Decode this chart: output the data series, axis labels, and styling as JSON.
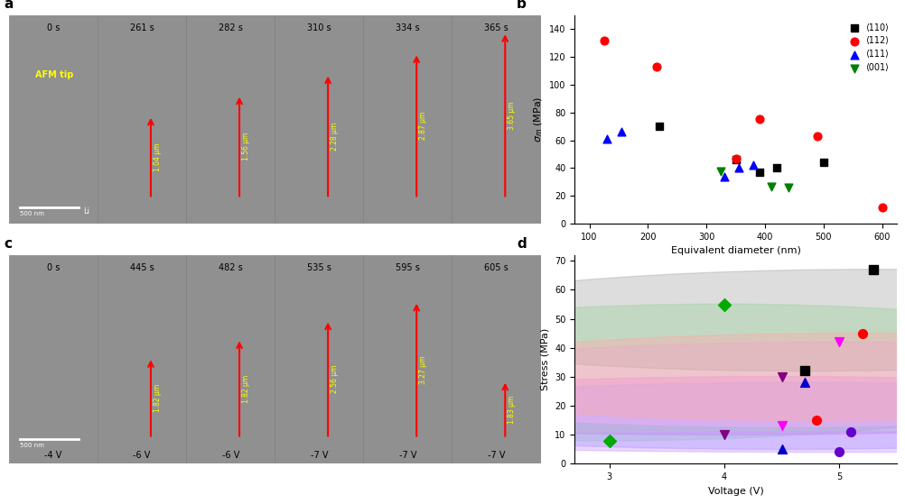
{
  "panel_b": {
    "title": "b",
    "xlabel": "Equivalent diameter (nm)",
    "ylabel": "σ_m (MPa)",
    "xlim": [
      75,
      625
    ],
    "ylim": [
      0,
      150
    ],
    "xticks": [
      100,
      200,
      300,
      400,
      500,
      600
    ],
    "yticks": [
      0,
      20,
      40,
      60,
      80,
      100,
      120,
      140
    ],
    "series": {
      "110": {
        "color": "black",
        "marker": "s",
        "label": "⟨110⟩",
        "x": [
          220,
          350,
          390,
          420,
          500
        ],
        "y": [
          70,
          46,
          37,
          40,
          44
        ]
      },
      "112": {
        "color": "red",
        "marker": "o",
        "label": "⟨112⟩",
        "x": [
          125,
          215,
          350,
          390,
          490,
          600
        ],
        "y": [
          132,
          113,
          47,
          75,
          63,
          12
        ]
      },
      "111": {
        "color": "blue",
        "marker": "^",
        "label": "⟨111⟩",
        "x": [
          130,
          155,
          330,
          355,
          380
        ],
        "y": [
          61,
          66,
          34,
          40,
          42
        ]
      },
      "001": {
        "color": "green",
        "marker": "v",
        "label": "⟨001⟩",
        "x": [
          325,
          410,
          440
        ],
        "y": [
          38,
          27,
          26
        ]
      }
    }
  },
  "panel_d": {
    "title": "d",
    "xlabel": "Voltage (V)",
    "ylabel": "Stress (MPa)",
    "xlim": [
      2.7,
      5.5
    ],
    "ylim": [
      0,
      72
    ],
    "xticks": [
      3,
      4,
      5
    ],
    "yticks": [
      0,
      10,
      20,
      30,
      40,
      50,
      60,
      70
    ],
    "series": [
      {
        "color": "#00aa00",
        "marker": "D",
        "x": [
          3.0,
          4.0
        ],
        "y": [
          8,
          55
        ],
        "ellipse_color": "#90ee90",
        "ellipse_alpha": 0.4
      },
      {
        "color": "#800080",
        "marker": "v",
        "x": [
          4.0,
          4.5
        ],
        "y": [
          10,
          30
        ],
        "ellipse_color": "#da70d6",
        "ellipse_alpha": 0.4
      },
      {
        "color": "#0000cc",
        "marker": "^",
        "x": [
          4.5,
          4.7
        ],
        "y": [
          5,
          28
        ],
        "ellipse_color": "#9999ff",
        "ellipse_alpha": 0.4
      },
      {
        "color": "#ff00ff",
        "marker": "v",
        "x": [
          4.5,
          5.0
        ],
        "y": [
          13,
          42
        ],
        "ellipse_color": "#ffaaff",
        "ellipse_alpha": 0.4
      },
      {
        "color": "black",
        "marker": "s",
        "x": [
          4.7,
          5.3
        ],
        "y": [
          32,
          67
        ],
        "ellipse_color": "#aaaaaa",
        "ellipse_alpha": 0.4
      },
      {
        "color": "red",
        "marker": "o",
        "x": [
          4.8,
          5.2
        ],
        "y": [
          15,
          45
        ],
        "ellipse_color": "#ffaaaa",
        "ellipse_alpha": 0.4
      },
      {
        "color": "#6600cc",
        "marker": "o",
        "x": [
          5.0,
          5.1
        ],
        "y": [
          4,
          11
        ],
        "ellipse_color": "#cc99ff",
        "ellipse_alpha": 0.4
      }
    ]
  },
  "microscopy_a": {
    "label": "a",
    "times": [
      "0 s",
      "261 s",
      "282 s",
      "310 s",
      "334 s",
      "365 s"
    ],
    "heights": [
      "",
      "1.04 μm",
      "1.56 μm",
      "2.28 μm",
      "2.87 μm",
      "3.65 μm"
    ]
  },
  "microscopy_c": {
    "label": "c",
    "times": [
      "0 s",
      "445 s",
      "482 s",
      "535 s",
      "595 s",
      "605 s"
    ],
    "voltages": [
      "-4 V",
      "-6 V",
      "-6 V",
      "-7 V",
      "-7 V",
      "-7 V"
    ],
    "heights": [
      "",
      "1.82 μm",
      "1.82 μm",
      "2.56 μm",
      "3.27 μm",
      "1.83 μm"
    ]
  },
  "background_color": "#f5f5f5"
}
